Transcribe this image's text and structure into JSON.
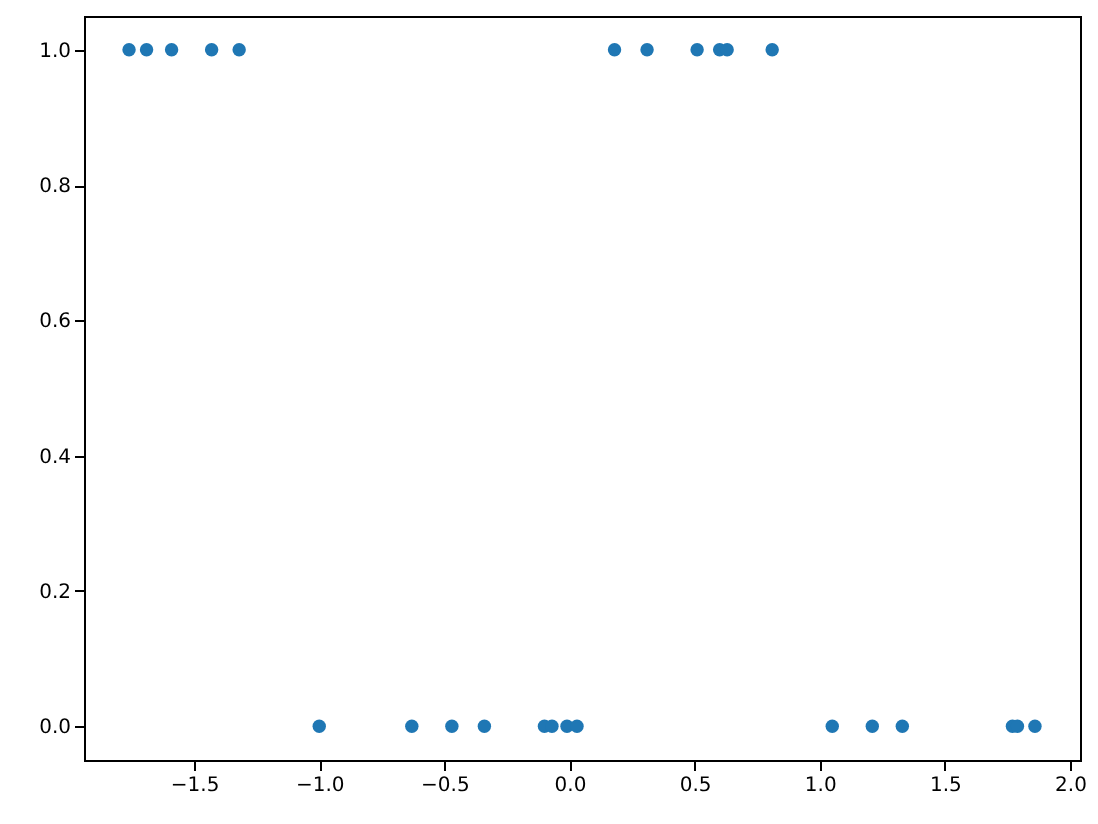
{
  "chart_data": {
    "type": "scatter",
    "marker": "circle",
    "grid": false,
    "x": [
      -1.76,
      -1.69,
      -1.59,
      -1.43,
      -1.32,
      0.18,
      0.31,
      0.51,
      0.6,
      0.63,
      0.81,
      -1.0,
      -0.63,
      -0.47,
      -0.34,
      -0.1,
      -0.07,
      -0.01,
      0.03,
      1.05,
      1.21,
      1.33,
      1.77,
      1.79,
      1.86
    ],
    "series": [
      {
        "color": "#1f77b4",
        "values": [
          1,
          1,
          1,
          1,
          1,
          1,
          1,
          1,
          1,
          1,
          1,
          0,
          0,
          0,
          0,
          0,
          0,
          0,
          0,
          0,
          0,
          0,
          0,
          0,
          0
        ]
      }
    ],
    "xlim": [
      -1.94,
      2.04
    ],
    "ylim": [
      -0.05,
      1.05
    ],
    "xticks": [
      {
        "value": -1.5,
        "label": "−1.5"
      },
      {
        "value": -1.0,
        "label": "−1.0"
      },
      {
        "value": -0.5,
        "label": "−0.5"
      },
      {
        "value": 0,
        "label": "0.0"
      },
      {
        "value": 0.5,
        "label": "0.5"
      },
      {
        "value": 1.0,
        "label": "1.0"
      },
      {
        "value": 1.5,
        "label": "1.5"
      },
      {
        "value": 2.0,
        "label": "2.0"
      }
    ],
    "yticks": [
      {
        "value": 0,
        "label": "0.0"
      },
      {
        "value": 0.2,
        "label": "0.2"
      },
      {
        "value": 0.4,
        "label": "0.4"
      },
      {
        "value": 0.6,
        "label": "0.6"
      },
      {
        "value": 0.8,
        "label": "0.8"
      },
      {
        "value": 1.0,
        "label": "1.0"
      }
    ]
  }
}
